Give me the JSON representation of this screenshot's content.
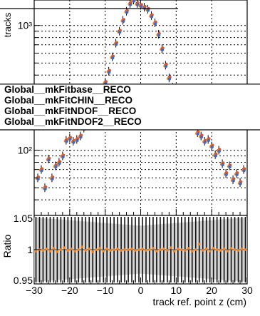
{
  "chart_data": [
    {
      "type": "scatter",
      "title": "",
      "ylabel": "tracks",
      "xlim": [
        -30,
        30
      ],
      "yscale": "log",
      "ylim": [
        30,
        1600
      ],
      "grid": true,
      "y_ticks": [
        {
          "value": 100,
          "label": "10²"
        },
        {
          "value": 1000,
          "label": "10³"
        }
      ],
      "legend_placement": "middle overlay",
      "series": [
        {
          "name": "Global__mkFitbase__RECO",
          "color": "#000000"
        },
        {
          "name": "Global__mkFitCHIN__RECO",
          "color": "#e8522b"
        },
        {
          "name": "Global__mkFitNDOF__RECO",
          "color": "#ff7f0e"
        },
        {
          "name": "Global__mkFitNDOF2__RECO",
          "color": "#3d6cc8"
        }
      ],
      "x": [
        -29,
        -28,
        -27,
        -26,
        -25,
        -24,
        -23,
        -22,
        -21,
        -20,
        -19,
        -18,
        -17,
        -16,
        -15,
        -14,
        -13,
        -12,
        -11,
        -10,
        -9,
        -8,
        -7,
        -6,
        -5,
        -4,
        -3,
        -2,
        -1,
        0,
        1,
        2,
        3,
        4,
        5,
        6,
        7,
        8,
        9,
        10,
        11,
        12,
        13,
        14,
        15,
        16,
        17,
        18,
        19,
        20,
        21,
        22,
        23,
        24,
        25,
        26,
        27,
        28,
        29
      ],
      "y": [
        60,
        70,
        50,
        85,
        60,
        75,
        80,
        90,
        120,
        125,
        118,
        122,
        130,
        150,
        160,
        180,
        205,
        240,
        290,
        350,
        430,
        560,
        720,
        900,
        1100,
        1300,
        1500,
        1600,
        1500,
        1450,
        1400,
        1350,
        1200,
        1050,
        850,
        650,
        480,
        380,
        320,
        275,
        240,
        210,
        200,
        180,
        160,
        138,
        130,
        118,
        122,
        108,
        92,
        100,
        78,
        65,
        75,
        58,
        65,
        55,
        70
      ]
    },
    {
      "type": "scatter",
      "ylabel": "Ratio",
      "xlabel": "track ref. point z (cm)",
      "xlim": [
        -30,
        30
      ],
      "ylim": [
        0.95,
        1.05
      ],
      "x_ticks": [
        -30,
        -20,
        -10,
        0,
        10,
        20,
        30
      ],
      "y_ticks": [
        {
          "value": 0.95,
          "label": "0.95"
        },
        {
          "value": 1,
          "label": "1"
        },
        {
          "value": 1.05,
          "label": "1.05"
        }
      ],
      "reference_line": 1,
      "x": [
        -29.5,
        -28.5,
        -27.5,
        -26.5,
        -25.5,
        -24.5,
        -23.5,
        -22.5,
        -21.5,
        -20.5,
        -19.5,
        -18.5,
        -17.5,
        -16.5,
        -15.5,
        -14.5,
        -13.5,
        -12.5,
        -11.5,
        -10.5,
        -9.5,
        -8.5,
        -7.5,
        -6.5,
        -5.5,
        -4.5,
        -3.5,
        -2.5,
        -1.5,
        -0.5,
        0.5,
        1.5,
        2.5,
        3.5,
        4.5,
        5.5,
        6.5,
        7.5,
        8.5,
        9.5,
        10.5,
        11.5,
        12.5,
        13.5,
        14.5,
        15.5,
        16.5,
        17.5,
        18.5,
        19.5,
        20.5,
        21.5,
        22.5,
        23.5,
        24.5,
        25.5,
        26.5,
        27.5,
        28.5,
        29.5
      ],
      "y": [
        0.998,
        1.0,
        0.999,
        1.001,
        0.998,
        1.002,
        0.997,
        1.0,
        1.003,
        0.999,
        1.001,
        0.998,
        1.0,
        1.004,
        0.999,
        1.001,
        0.997,
        1.0,
        1.002,
        0.998,
        1.001,
        0.999,
        1.0,
        1.001,
        0.999,
        1.0,
        1.0,
        1.001,
        0.999,
        1.0,
        1.001,
        0.999,
        1.0,
        1.002,
        0.998,
        1.0,
        1.001,
        0.999,
        1.003,
        0.998,
        1.001,
        1.0,
        0.999,
        1.002,
        0.998,
        1.0,
        1.008,
        0.999,
        1.001,
        0.998,
        1.002,
        1.0,
        0.999,
        1.001,
        0.998,
        1.002,
        1.0,
        0.999,
        1.001,
        1.0
      ]
    }
  ]
}
